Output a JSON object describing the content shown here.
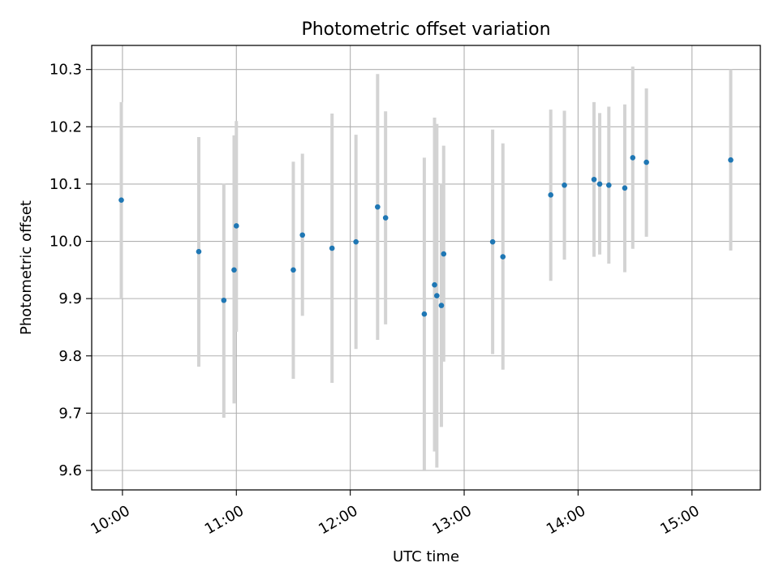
{
  "chart_data": {
    "type": "scatter",
    "title": "Photometric offset variation",
    "xlabel": "UTC time",
    "ylabel": "Photometric offset",
    "x_unit": "hours UTC",
    "xlim": [
      9.73,
      15.6
    ],
    "ylim": [
      9.566,
      10.342
    ],
    "x_ticks": [
      {
        "value": 10,
        "label": "10:00"
      },
      {
        "value": 11,
        "label": "11:00"
      },
      {
        "value": 12,
        "label": "12:00"
      },
      {
        "value": 13,
        "label": "13:00"
      },
      {
        "value": 14,
        "label": "14:00"
      },
      {
        "value": 15,
        "label": "15:00"
      }
    ],
    "y_ticks": [
      {
        "value": 9.6,
        "label": "9.6"
      },
      {
        "value": 9.7,
        "label": "9.7"
      },
      {
        "value": 9.8,
        "label": "9.8"
      },
      {
        "value": 9.9,
        "label": "9.9"
      },
      {
        "value": 10.0,
        "label": "10.0"
      },
      {
        "value": 10.1,
        "label": "10.1"
      },
      {
        "value": 10.2,
        "label": "10.2"
      },
      {
        "value": 10.3,
        "label": "10.3"
      }
    ],
    "grid": true,
    "point_color": "#1f77b4",
    "errorbar_color": "#d3d3d3",
    "points": [
      {
        "x": 9.99,
        "y": 10.072,
        "ylow": 9.9,
        "yhigh": 10.243
      },
      {
        "x": 10.67,
        "y": 9.982,
        "ylow": 9.781,
        "yhigh": 10.182
      },
      {
        "x": 10.89,
        "y": 9.897,
        "ylow": 9.692,
        "yhigh": 10.101
      },
      {
        "x": 10.98,
        "y": 9.95,
        "ylow": 9.717,
        "yhigh": 10.185
      },
      {
        "x": 11.0,
        "y": 10.027,
        "ylow": 9.842,
        "yhigh": 10.21
      },
      {
        "x": 11.5,
        "y": 9.95,
        "ylow": 9.76,
        "yhigh": 10.139
      },
      {
        "x": 11.58,
        "y": 10.011,
        "ylow": 9.87,
        "yhigh": 10.153
      },
      {
        "x": 11.84,
        "y": 9.988,
        "ylow": 9.753,
        "yhigh": 10.223
      },
      {
        "x": 12.05,
        "y": 9.999,
        "ylow": 9.812,
        "yhigh": 10.186
      },
      {
        "x": 12.24,
        "y": 10.06,
        "ylow": 9.828,
        "yhigh": 10.292
      },
      {
        "x": 12.31,
        "y": 10.041,
        "ylow": 9.855,
        "yhigh": 10.227
      },
      {
        "x": 12.65,
        "y": 9.873,
        "ylow": 9.601,
        "yhigh": 10.146
      },
      {
        "x": 12.74,
        "y": 9.924,
        "ylow": 9.633,
        "yhigh": 10.216
      },
      {
        "x": 12.76,
        "y": 9.905,
        "ylow": 9.605,
        "yhigh": 10.205
      },
      {
        "x": 12.8,
        "y": 9.888,
        "ylow": 9.676,
        "yhigh": 10.101
      },
      {
        "x": 12.82,
        "y": 9.978,
        "ylow": 9.79,
        "yhigh": 10.167
      },
      {
        "x": 13.25,
        "y": 9.999,
        "ylow": 9.803,
        "yhigh": 10.195
      },
      {
        "x": 13.34,
        "y": 9.973,
        "ylow": 9.776,
        "yhigh": 10.171
      },
      {
        "x": 13.76,
        "y": 10.081,
        "ylow": 9.931,
        "yhigh": 10.23
      },
      {
        "x": 13.88,
        "y": 10.098,
        "ylow": 9.968,
        "yhigh": 10.228
      },
      {
        "x": 14.14,
        "y": 10.108,
        "ylow": 9.973,
        "yhigh": 10.243
      },
      {
        "x": 14.19,
        "y": 10.1,
        "ylow": 9.977,
        "yhigh": 10.224
      },
      {
        "x": 14.27,
        "y": 10.098,
        "ylow": 9.961,
        "yhigh": 10.235
      },
      {
        "x": 14.41,
        "y": 10.093,
        "ylow": 9.946,
        "yhigh": 10.239
      },
      {
        "x": 14.48,
        "y": 10.146,
        "ylow": 9.987,
        "yhigh": 10.305
      },
      {
        "x": 14.6,
        "y": 10.138,
        "ylow": 10.008,
        "yhigh": 10.267
      },
      {
        "x": 15.34,
        "y": 10.142,
        "ylow": 9.984,
        "yhigh": 10.3
      }
    ]
  }
}
